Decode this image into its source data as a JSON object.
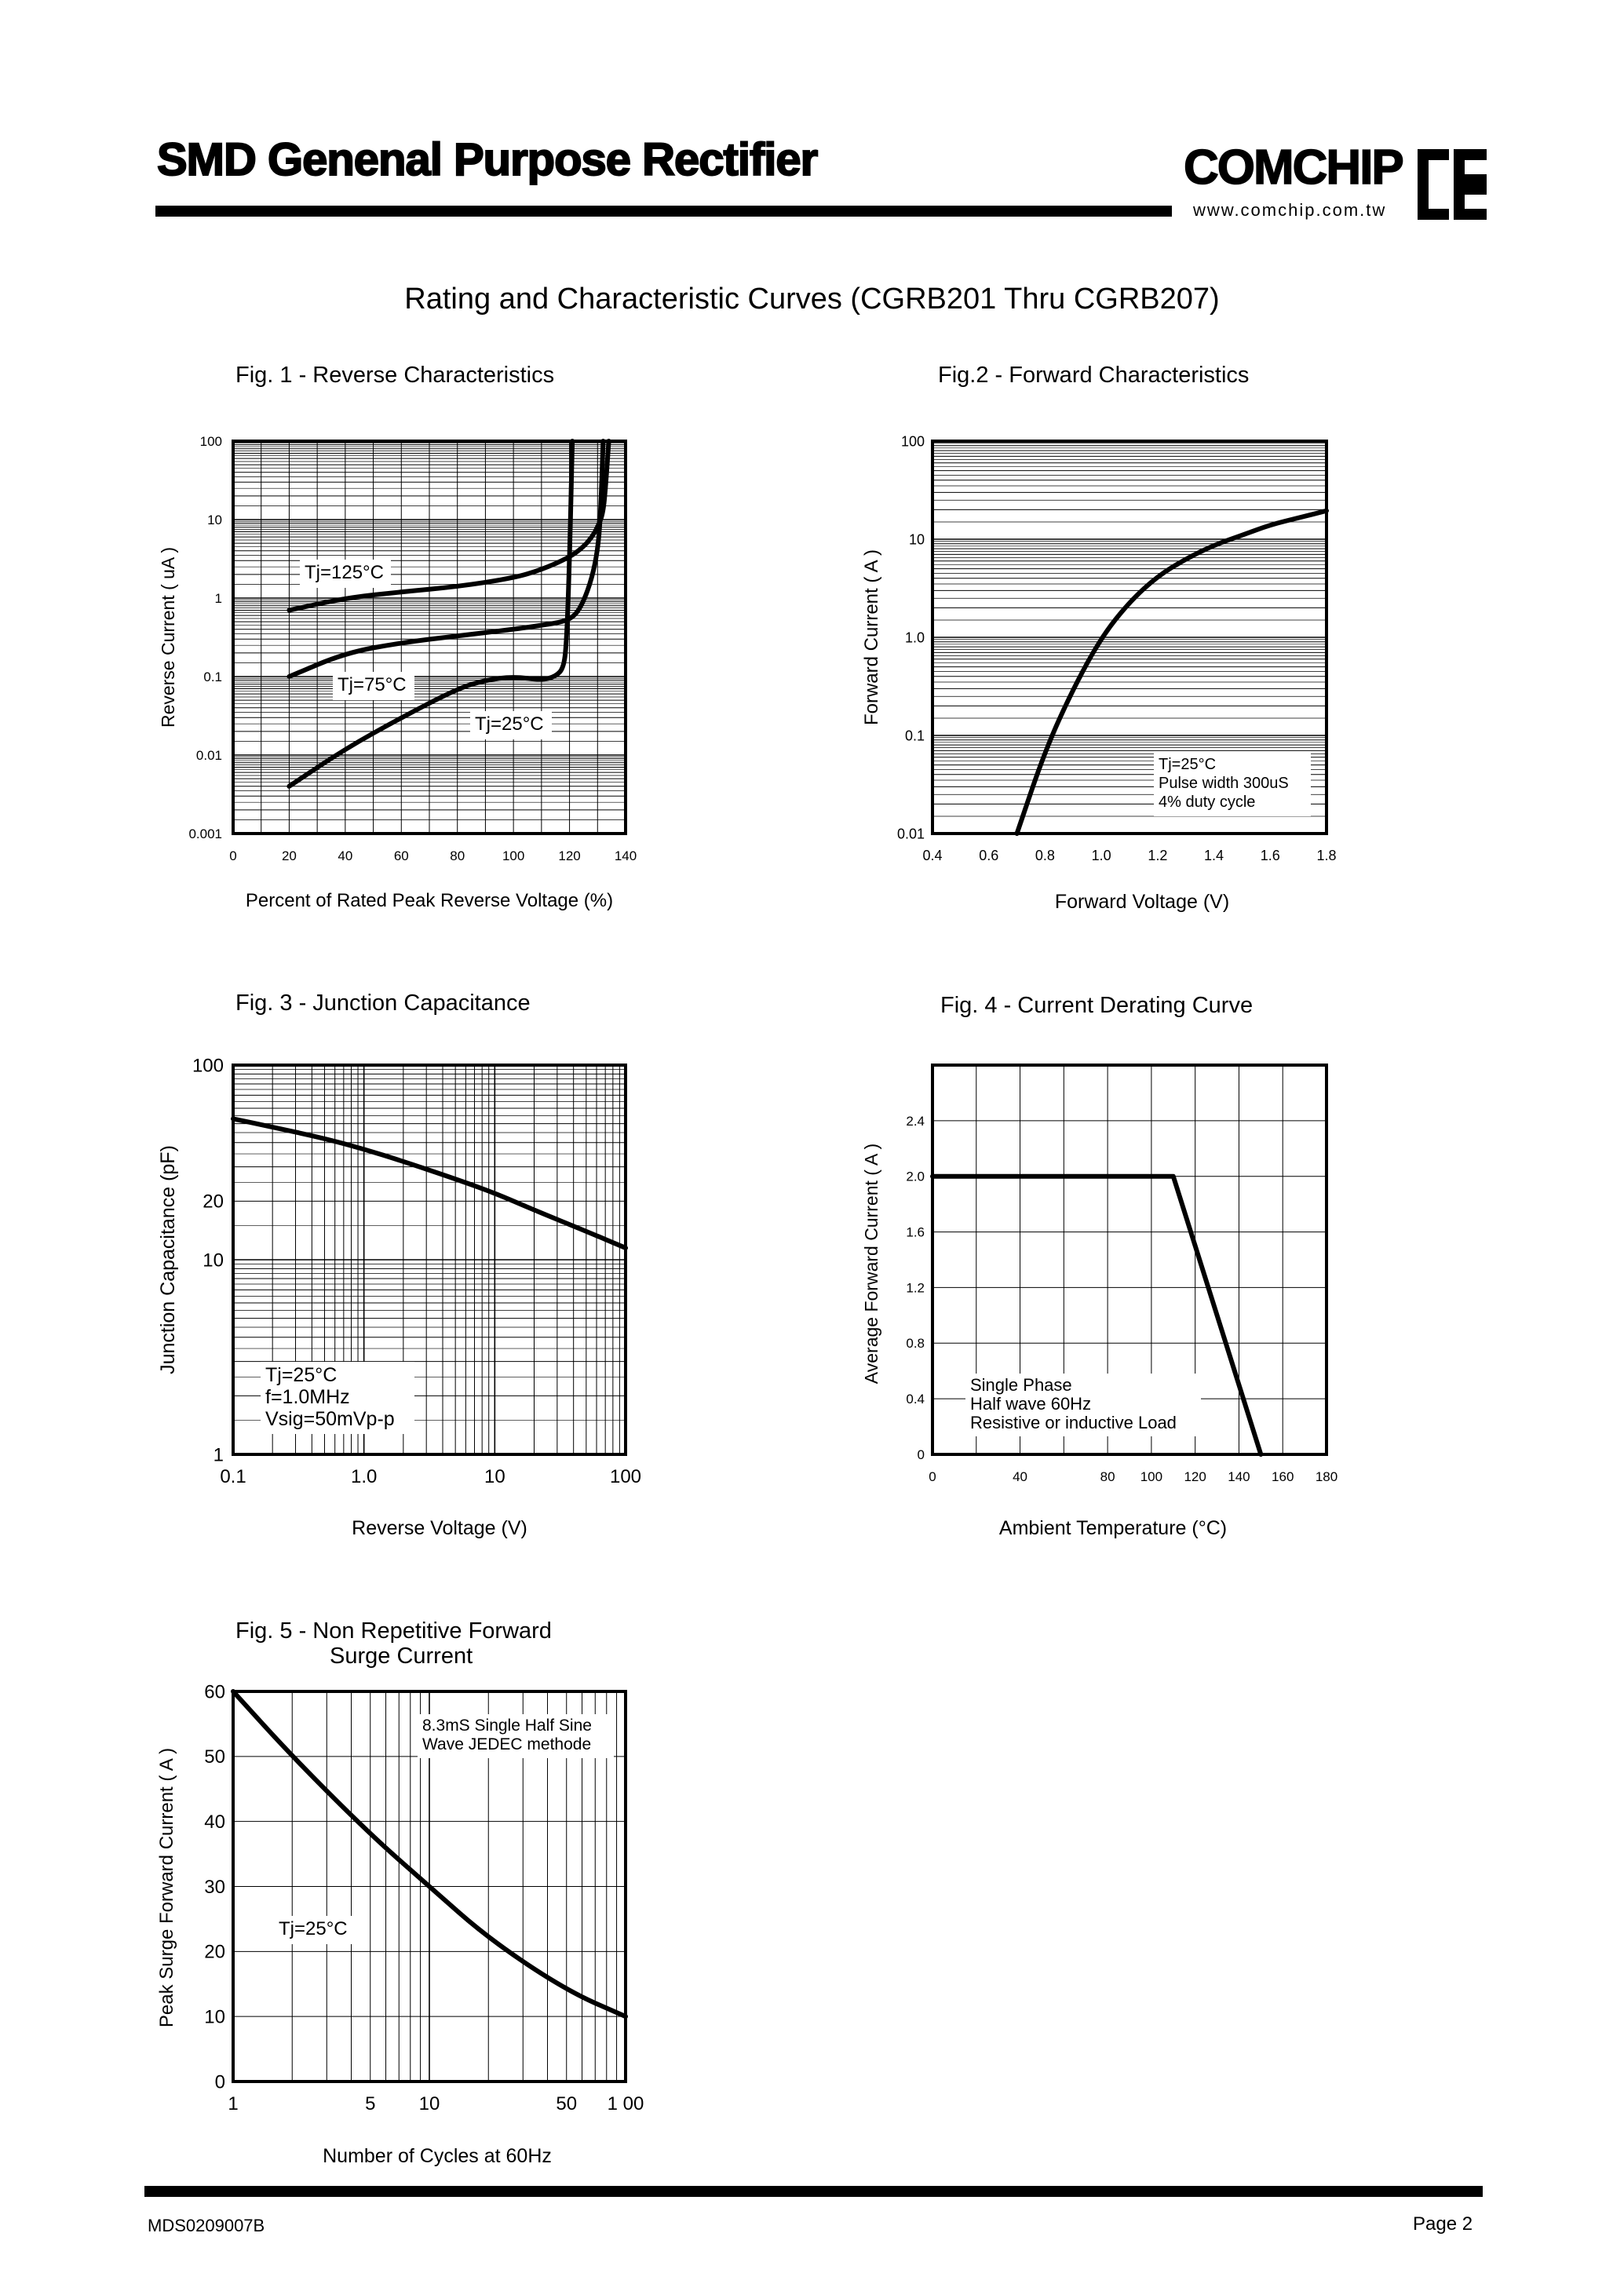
{
  "header": {
    "title": "SMD Genenal Purpose Rectifier",
    "brand": "COMCHIP",
    "url": "www.comchip.com.tw"
  },
  "document": {
    "title": "Rating and Characteristic Curves (CGRB201 Thru CGRB207)"
  },
  "footer": {
    "code": "MDS0209007B",
    "page": "Page 2"
  },
  "chart_data": [
    {
      "id": "fig1",
      "type": "line",
      "title": "Fig. 1 -  Reverse Characteristics",
      "xlabel": "Percent of Rated Peak Reverse Voltage (%)",
      "ylabel": "Reverse Current ( uA )",
      "xscale": "linear",
      "yscale": "log",
      "xlim": [
        0,
        140
      ],
      "ylim": [
        0.001,
        100
      ],
      "xticks": [
        "0",
        "20",
        "40",
        "60",
        "80",
        "100",
        "120",
        "140"
      ],
      "yticks": [
        "0.001",
        "0.01",
        "0.1",
        "1",
        "10",
        "100"
      ],
      "grid": true,
      "series": [
        {
          "label": "Tj=125°C",
          "x": [
            20,
            40,
            60,
            80,
            100,
            110,
            120,
            125,
            128,
            130,
            132,
            133,
            134
          ],
          "y": [
            0.7,
            1.0,
            1.2,
            1.4,
            1.8,
            2.3,
            3.3,
            4.5,
            6,
            8,
            12,
            30,
            100
          ]
        },
        {
          "label": "Tj=75°C",
          "x": [
            20,
            40,
            60,
            80,
            100,
            110,
            118,
            122,
            125,
            128,
            130,
            131,
            132
          ],
          "y": [
            0.1,
            0.2,
            0.27,
            0.33,
            0.4,
            0.45,
            0.5,
            0.6,
            0.9,
            1.8,
            4,
            10,
            100
          ]
        },
        {
          "label": "Tj=25°C",
          "x": [
            20,
            40,
            60,
            80,
            90,
            100,
            110,
            115,
            118,
            119,
            120,
            121
          ],
          "y": [
            0.004,
            0.012,
            0.03,
            0.07,
            0.09,
            0.1,
            0.09,
            0.1,
            0.13,
            0.3,
            3,
            100
          ]
        }
      ]
    },
    {
      "id": "fig2",
      "type": "line",
      "title": "Fig.2 -  Forward Characteristics",
      "xlabel": "Forward Voltage (V)",
      "ylabel": "Forward Current ( A )",
      "xscale": "linear",
      "yscale": "log",
      "xlim": [
        0.4,
        1.8
      ],
      "ylim": [
        0.01,
        100
      ],
      "xticks": [
        "0.4",
        "0.6",
        "0.8",
        "1.0",
        "1.2",
        "1.4",
        "1.6",
        "1.8"
      ],
      "yticks": [
        "0.01",
        "0.1",
        "1.0",
        "10",
        "100"
      ],
      "grid": true,
      "annotation": [
        "Tj=25°C",
        "Pulse width 300uS",
        "4% duty cycle"
      ],
      "series": [
        {
          "x": [
            0.7,
            0.8,
            0.9,
            1.0,
            1.1,
            1.2,
            1.3,
            1.4,
            1.5,
            1.6,
            1.7,
            1.8
          ],
          "y": [
            0.01,
            0.07,
            0.3,
            1.0,
            2.3,
            4.2,
            6.3,
            8.7,
            11,
            14,
            16.5,
            19.5
          ]
        }
      ]
    },
    {
      "id": "fig3",
      "type": "line",
      "title": "Fig. 3 -  Junction Capacitance",
      "xlabel": "Reverse Voltage (V)",
      "ylabel": "Junction Capacitance  (pF)",
      "xscale": "log",
      "yscale": "log",
      "xlim": [
        0.1,
        100
      ],
      "ylim": [
        1,
        100
      ],
      "xticks": [
        "0.1",
        "1.0",
        "10",
        "100"
      ],
      "yticks": [
        "1",
        "10",
        "20",
        "100"
      ],
      "grid": true,
      "annotation": [
        "Tj=25°C",
        "f=1.0MHz",
        "Vsig=50mVp-p"
      ],
      "series": [
        {
          "x": [
            0.1,
            0.2,
            0.5,
            1,
            2,
            5,
            10,
            20,
            50,
            100
          ],
          "y": [
            53,
            48,
            42,
            37,
            32,
            26,
            22,
            18,
            14,
            11.5
          ]
        }
      ]
    },
    {
      "id": "fig4",
      "type": "line",
      "title": "Fig. 4 - Current Derating Curve",
      "xlabel": "Ambient Temperature (°C)",
      "ylabel": "Average Forward Current ( A )",
      "xscale": "linear",
      "yscale": "linear",
      "xlim": [
        0,
        180
      ],
      "ylim": [
        0,
        2.8
      ],
      "xticks": [
        "0",
        "40",
        "80",
        "100",
        "120",
        "140",
        "160",
        "180"
      ],
      "yticks": [
        "0",
        "0.4",
        "0.8",
        "1.2",
        "1.6",
        "2.0",
        "2.4"
      ],
      "grid": true,
      "annotation": [
        "Single Phase",
        "Half wave 60Hz",
        "Resistive or inductive Load"
      ],
      "series": [
        {
          "x": [
            0,
            75,
            110,
            150
          ],
          "y": [
            2.0,
            2.0,
            2.0,
            0
          ]
        }
      ]
    },
    {
      "id": "fig5",
      "type": "line",
      "title": "Fig. 5 -  Non Repetitive Forward",
      "title2": "Surge Current",
      "xlabel": "Number of Cycles at 60Hz",
      "ylabel": "Peak Surge Forward Current ( A )",
      "xscale": "log",
      "yscale": "linear",
      "xlim": [
        1,
        100
      ],
      "ylim": [
        0,
        60
      ],
      "xticks": [
        "1",
        "5",
        "10",
        "50",
        "1 00"
      ],
      "yticks": [
        "0",
        "10",
        "20",
        "30",
        "40",
        "50",
        "60"
      ],
      "grid": true,
      "annotation": [
        "8.3mS Single Half Sine",
        "Wave JEDEC methode",
        "Tj=25°C"
      ],
      "series": [
        {
          "x": [
            1,
            2,
            5,
            10,
            20,
            50,
            100
          ],
          "y": [
            60,
            50,
            38,
            30,
            22,
            14,
            10
          ]
        }
      ]
    }
  ]
}
